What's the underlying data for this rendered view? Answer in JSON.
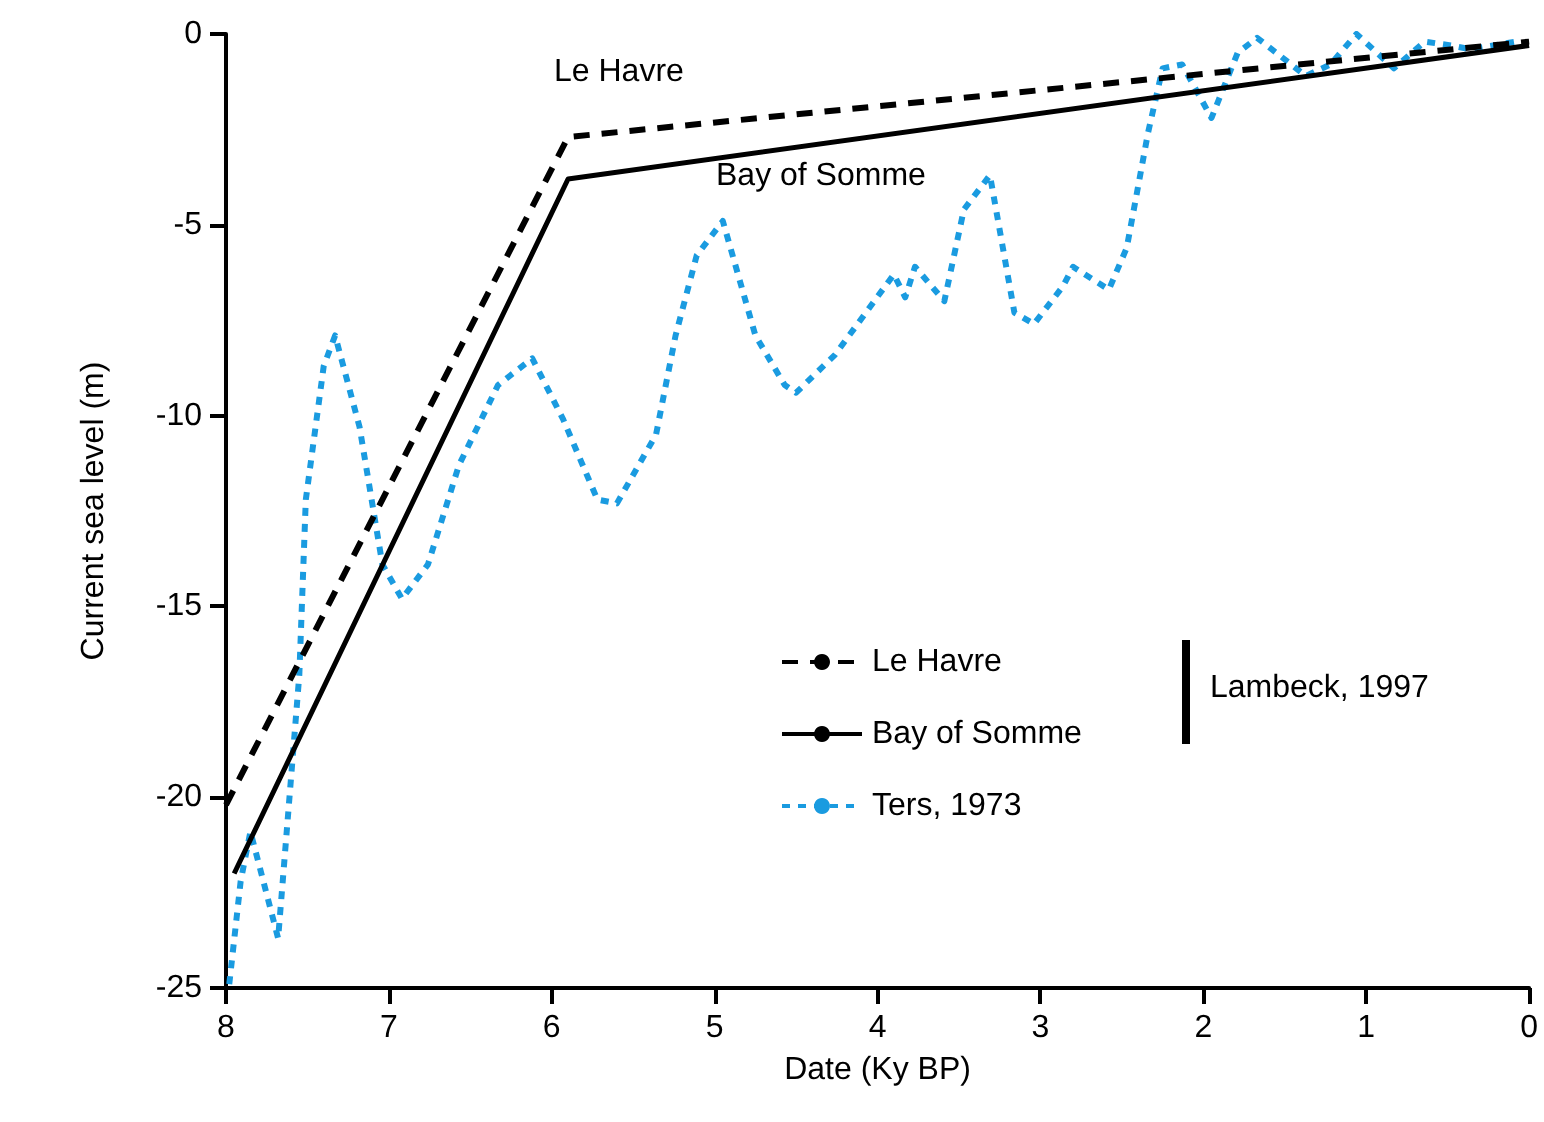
{
  "chart_data": {
    "type": "line",
    "xlabel": "Date (Ky BP)",
    "ylabel": "Current sea level (m)",
    "xlim": [
      8,
      0
    ],
    "xticks": [
      8,
      7,
      6,
      5,
      4,
      3,
      2,
      1,
      0
    ],
    "ylim": [
      -25,
      0
    ],
    "yticks": [
      -25,
      -20,
      -15,
      -10,
      -5,
      0
    ],
    "grid": false,
    "legend": "bottom right",
    "marker": "none",
    "series": [
      {
        "name": "Le Havre",
        "color": "#000000",
        "line_style": "dashed",
        "x": [
          8,
          5.9,
          0
        ],
        "values": [
          -20.2,
          -2.7,
          -0.2
        ]
      },
      {
        "name": "Bay of Somme",
        "color": "#000000",
        "line_style": "solid",
        "x": [
          7.95,
          5.9,
          0
        ],
        "values": [
          -22,
          -3.8,
          -0.3
        ]
      },
      {
        "name": "Ters, 1973",
        "color": "#1a9be0",
        "line_style": "dotted",
        "x": [
          7.98,
          7.91,
          7.85,
          7.68,
          7.55,
          7.51,
          7.4,
          7.33,
          7.18,
          7.04,
          6.92,
          6.76,
          6.57,
          6.33,
          6.12,
          5.93,
          5.72,
          5.6,
          5.36,
          5.24,
          5.11,
          4.95,
          4.75,
          4.57,
          4.5,
          4.26,
          4.02,
          3.9,
          3.83,
          3.77,
          3.59,
          3.47,
          3.31,
          3.16,
          3.04,
          2.86,
          2.8,
          2.58,
          2.47,
          2.34,
          2.25,
          2.13,
          1.95,
          1.79,
          1.67,
          1.37,
          1.22,
          1.06,
          0.83,
          0.64,
          0.48,
          0.36,
          0.08
        ],
        "values": [
          -24.9,
          -22.2,
          -20.9,
          -23.7,
          -16.8,
          -12.2,
          -8.7,
          -7.9,
          -10.3,
          -13.9,
          -14.8,
          -13.9,
          -11.3,
          -9.2,
          -8.5,
          -10.1,
          -12.2,
          -12.3,
          -10.5,
          -7.9,
          -5.8,
          -4.9,
          -7.9,
          -9.2,
          -9.4,
          -8.4,
          -7,
          -6.3,
          -6.9,
          -6.1,
          -7,
          -4.6,
          -3.7,
          -7.3,
          -7.6,
          -6.6,
          -6.1,
          -6.7,
          -5.6,
          -2.6,
          -0.9,
          -0.8,
          -2.2,
          -0.5,
          -0.1,
          -1.1,
          -0.8,
          0,
          -0.9,
          -0.2,
          -0.3,
          -0.4,
          -0.2
        ]
      }
    ],
    "annotations": [
      "Le Havre",
      "Bay of Somme",
      "Lambeck, 1997"
    ]
  }
}
